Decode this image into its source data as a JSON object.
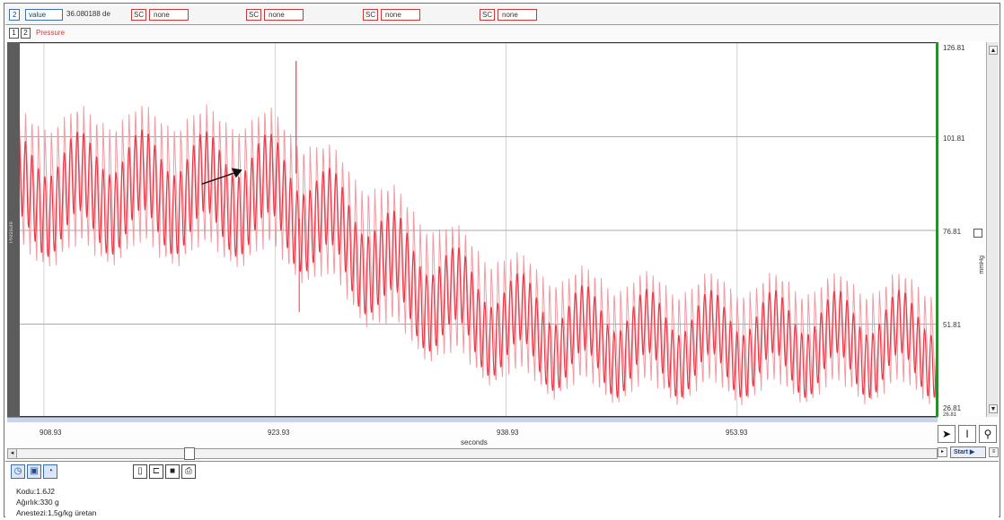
{
  "toolbar": {
    "channel_number": "2",
    "mode_label": "value",
    "readout": "36.080188 de",
    "sc_label": "SC",
    "slot_1": "none",
    "slot_2": "none",
    "slot_3": "none",
    "slot_4": "none"
  },
  "channel_tabs": [
    "1",
    "2"
  ],
  "channel_title": "Pressure",
  "left_strip_label": "Pressure",
  "y_axis": {
    "ticks": [
      "126.81",
      "101.81",
      "76.81",
      "51.81",
      "26.81"
    ],
    "overflow_tick": "26.81",
    "unit": "mmHg",
    "range": [
      26.81,
      126.81
    ]
  },
  "x_axis": {
    "ticks": [
      "908.93",
      "923.93",
      "938.93",
      "953.93"
    ],
    "label": "seconds",
    "range": [
      906.6,
      967.0
    ]
  },
  "tools": {
    "pointer": "pointer-tool",
    "cursor": "text-cursor-tool",
    "zoom": "magnifier-tool"
  },
  "start_button": "Start",
  "notes": {
    "line1": "Kodu:1.6J2",
    "line2": "Ağırlık:330 g",
    "line3": "Anestezi:1,5g/kg üretan"
  },
  "colors": {
    "trace": "#e83a48",
    "trace_light": "#f29aa2",
    "accent": "#3e6fb0",
    "marker_green": "#2e8b2e"
  },
  "chart_data": {
    "type": "line",
    "series": [
      {
        "name": "Pressure",
        "x": [
          906.6,
          915,
          924,
          928,
          931,
          934,
          937,
          940,
          943,
          946,
          950,
          955,
          960,
          967
        ],
        "y_upper": [
          107,
          108,
          107,
          96,
          88,
          80,
          73,
          68,
          65,
          64,
          63,
          63,
          63,
          63
        ],
        "y_lower": [
          69,
          70,
          69,
          60,
          50,
          44,
          39,
          36,
          34,
          33,
          33,
          33,
          33,
          33
        ]
      }
    ],
    "annotations": [
      {
        "type": "arrow",
        "x": 921.8,
        "y": 93
      }
    ]
  }
}
